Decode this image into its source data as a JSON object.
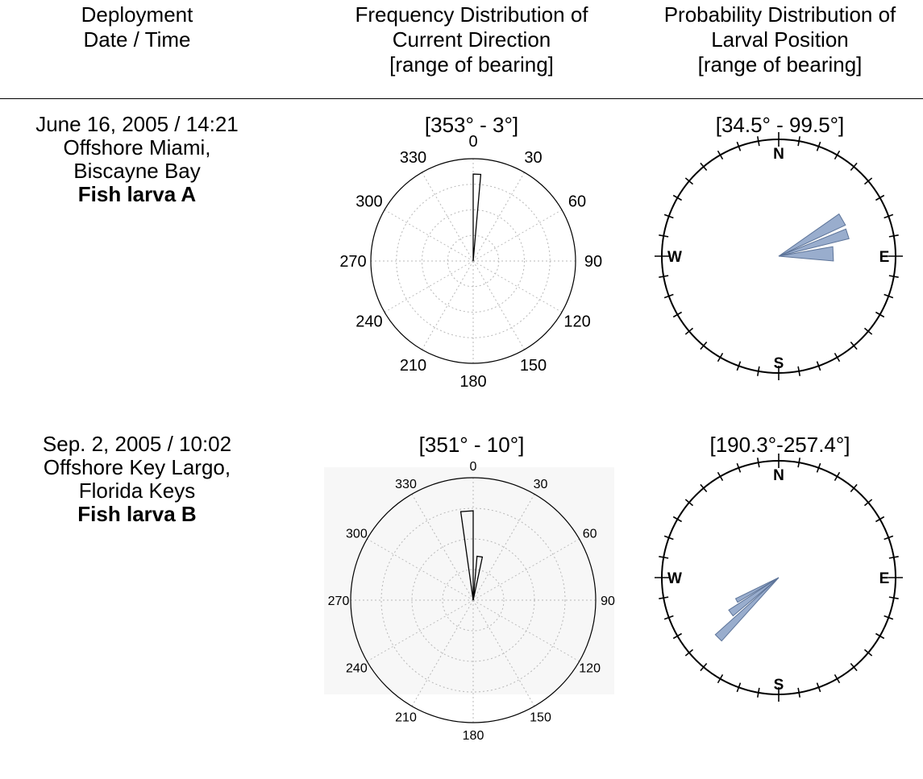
{
  "table": {
    "headers": [
      [
        "Deployment",
        "Date / Time"
      ],
      [
        "Frequency Distribution of",
        "Current Direction",
        "[range of bearing]"
      ],
      [
        "Probability Distribution of",
        "Larval Position",
        "[range of bearing]"
      ]
    ],
    "rows": [
      {
        "description": [
          "June 16, 2005 / 14:21",
          "Offshore Miami,",
          "Biscayne Bay"
        ],
        "subject": "Fish larva A",
        "current_range": "[353° - 3°]",
        "larval_range": "[34.5° - 99.5°]"
      },
      {
        "description": [
          "Sep. 2, 2005 / 10:02",
          "Offshore Key Largo,",
          "Florida Keys"
        ],
        "subject": "Fish larva B",
        "current_range": "[351° - 10°]",
        "larval_range": "[190.3°-257.4°]"
      }
    ]
  },
  "compass_labels": [
    "N",
    "E",
    "S",
    "W"
  ],
  "chart_data": [
    {
      "type": "rose",
      "figure": "current-direction-larva-A",
      "angle_tick_labels": [
        "0",
        "30",
        "60",
        "90",
        "120",
        "150",
        "180",
        "210",
        "240",
        "270",
        "300",
        "330"
      ],
      "bins": [
        {
          "from": 0,
          "to": 5,
          "value": 0.85
        }
      ],
      "rmax": 1
    },
    {
      "type": "rose",
      "figure": "larval-position-larva-A",
      "bins": [
        {
          "from": 55,
          "to": 65,
          "value": 0.63
        },
        {
          "from": 68,
          "to": 76,
          "value": 0.62
        },
        {
          "from": 80,
          "to": 95,
          "value": 0.47
        }
      ],
      "rmax": 1,
      "color": "#8ea4c8"
    },
    {
      "type": "rose",
      "figure": "current-direction-larva-B",
      "angle_tick_labels": [
        "0",
        "30",
        "60",
        "90",
        "120",
        "150",
        "180",
        "210",
        "240",
        "270",
        "300",
        "330"
      ],
      "bins": [
        {
          "from": 352,
          "to": 360,
          "value": 0.73
        },
        {
          "from": 5,
          "to": 12,
          "value": 0.36
        }
      ],
      "rmax": 1
    },
    {
      "type": "rose",
      "figure": "larval-position-larva-B",
      "bins": [
        {
          "from": 222,
          "to": 228,
          "value": 0.73
        },
        {
          "from": 230,
          "to": 237,
          "value": 0.51
        },
        {
          "from": 239,
          "to": 244,
          "value": 0.41
        }
      ],
      "rmax": 1,
      "color": "#8ea4c8"
    }
  ]
}
